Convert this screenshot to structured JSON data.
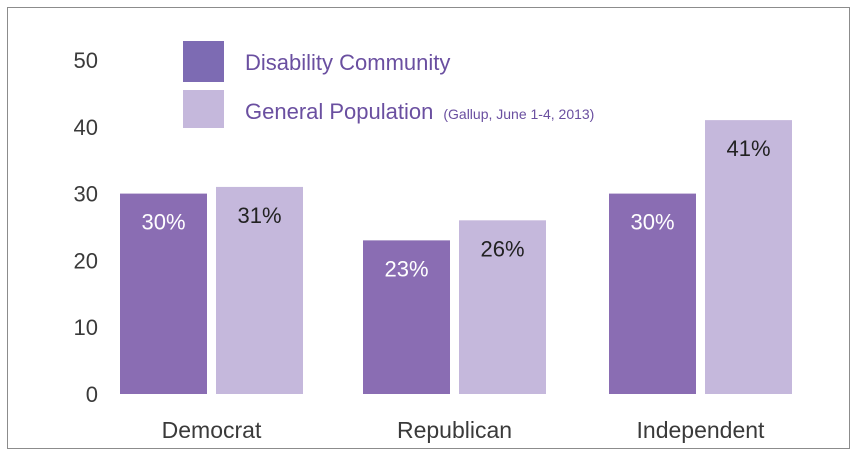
{
  "chart_data": {
    "type": "bar",
    "title": "",
    "xlabel": "",
    "ylabel": "",
    "categories": [
      "Democrat",
      "Republican",
      "Independent"
    ],
    "series": [
      {
        "name": "Disability Community",
        "values": [
          30,
          23,
          30
        ],
        "labels": [
          "30%",
          "23%",
          "30%"
        ]
      },
      {
        "name": "General Population",
        "note": "(Gallup, June 1-4, 2013)",
        "values": [
          31,
          26,
          41
        ],
        "labels": [
          "31%",
          "26%",
          "41%"
        ]
      }
    ],
    "ylim": [
      0,
      50
    ],
    "yticks": [
      "0",
      "10",
      "20",
      "30",
      "40",
      "50"
    ],
    "grid": false,
    "legend": "top-center"
  },
  "colors": {
    "disability": "#8a6db3",
    "general": "#c5b8dc",
    "legend_disability": "#7d6bb3",
    "legend_text": "#6a4fa0",
    "label_on_dark": "#ffffff",
    "label_on_light": "#222222"
  }
}
